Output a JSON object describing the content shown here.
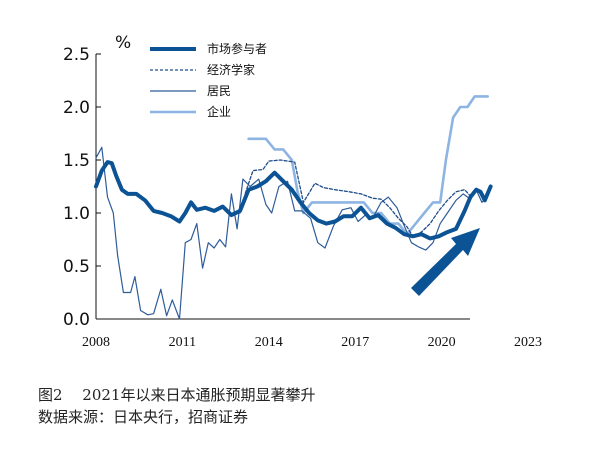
{
  "chart_data": {
    "type": "line",
    "title": "",
    "xlabel": "",
    "ylabel": "%",
    "xlim": [
      2008,
      2023
    ],
    "ylim": [
      0.0,
      2.5
    ],
    "x_ticks": [
      2008,
      2011,
      2014,
      2017,
      2020,
      2023
    ],
    "x_tick_labels": [
      "2008",
      "2011",
      "2014",
      "2017",
      "2020",
      "2023"
    ],
    "y_ticks": [
      0.0,
      0.5,
      1.0,
      1.5,
      2.0,
      2.5
    ],
    "y_tick_labels": [
      "0.0",
      "0.5",
      "1.0",
      "1.5",
      "2.0",
      "2.5"
    ],
    "grid": false,
    "legend_position": "top-center",
    "series": [
      {
        "name": "市场参与者",
        "color": "#0b5394",
        "style": "solid-thick",
        "points": [
          [
            2008.0,
            1.25
          ],
          [
            2008.2,
            1.4
          ],
          [
            2008.4,
            1.48
          ],
          [
            2008.55,
            1.47
          ],
          [
            2008.7,
            1.35
          ],
          [
            2008.9,
            1.22
          ],
          [
            2009.1,
            1.18
          ],
          [
            2009.4,
            1.18
          ],
          [
            2009.7,
            1.12
          ],
          [
            2010.0,
            1.02
          ],
          [
            2010.3,
            1.0
          ],
          [
            2010.6,
            0.97
          ],
          [
            2010.9,
            0.92
          ],
          [
            2011.1,
            1.0
          ],
          [
            2011.3,
            1.1
          ],
          [
            2011.5,
            1.03
          ],
          [
            2011.8,
            1.05
          ],
          [
            2012.1,
            1.02
          ],
          [
            2012.4,
            1.06
          ],
          [
            2012.7,
            0.98
          ],
          [
            2013.0,
            1.02
          ],
          [
            2013.3,
            1.22
          ],
          [
            2013.6,
            1.25
          ],
          [
            2013.9,
            1.3
          ],
          [
            2014.2,
            1.38
          ],
          [
            2014.5,
            1.3
          ],
          [
            2014.8,
            1.22
          ],
          [
            2015.1,
            1.1
          ],
          [
            2015.4,
            1.0
          ],
          [
            2015.7,
            0.93
          ],
          [
            2016.0,
            0.9
          ],
          [
            2016.3,
            0.92
          ],
          [
            2016.6,
            0.97
          ],
          [
            2016.9,
            0.97
          ],
          [
            2017.2,
            1.05
          ],
          [
            2017.5,
            0.95
          ],
          [
            2017.8,
            0.98
          ],
          [
            2018.1,
            0.9
          ],
          [
            2018.4,
            0.86
          ],
          [
            2018.7,
            0.8
          ],
          [
            2019.0,
            0.78
          ],
          [
            2019.3,
            0.8
          ],
          [
            2019.6,
            0.76
          ],
          [
            2019.9,
            0.78
          ],
          [
            2020.2,
            0.82
          ],
          [
            2020.5,
            0.85
          ],
          [
            2020.8,
            1.02
          ],
          [
            2021.0,
            1.15
          ],
          [
            2021.2,
            1.22
          ],
          [
            2021.35,
            1.2
          ],
          [
            2021.5,
            1.12
          ],
          [
            2021.7,
            1.25
          ]
        ]
      },
      {
        "name": "经济学家",
        "color": "#1f4e8c",
        "style": "dashed",
        "points": [
          [
            2013.0,
            1.0
          ],
          [
            2013.2,
            1.2
          ],
          [
            2013.45,
            1.4
          ],
          [
            2013.8,
            1.41
          ],
          [
            2014.0,
            1.49
          ],
          [
            2014.4,
            1.5
          ],
          [
            2014.9,
            1.48
          ],
          [
            2015.2,
            1.1
          ],
          [
            2015.6,
            1.28
          ],
          [
            2015.9,
            1.24
          ],
          [
            2016.3,
            1.22
          ],
          [
            2016.8,
            1.2
          ],
          [
            2017.2,
            1.18
          ],
          [
            2017.6,
            1.14
          ],
          [
            2017.9,
            1.13
          ],
          [
            2018.2,
            1.05
          ],
          [
            2018.5,
            0.95
          ],
          [
            2018.8,
            0.87
          ],
          [
            2019.0,
            0.78
          ],
          [
            2019.3,
            0.82
          ],
          [
            2019.6,
            0.9
          ],
          [
            2019.9,
            1.02
          ],
          [
            2020.2,
            1.12
          ],
          [
            2020.5,
            1.2
          ],
          [
            2020.8,
            1.22
          ],
          [
            2021.0,
            1.16
          ]
        ]
      },
      {
        "name": "居民",
        "color": "#2e5c9a",
        "style": "solid-thin",
        "points": [
          [
            2008.0,
            1.52
          ],
          [
            2008.2,
            1.62
          ],
          [
            2008.4,
            1.15
          ],
          [
            2008.6,
            1.0
          ],
          [
            2008.75,
            0.6
          ],
          [
            2008.95,
            0.25
          ],
          [
            2009.2,
            0.25
          ],
          [
            2009.35,
            0.4
          ],
          [
            2009.55,
            0.08
          ],
          [
            2009.8,
            0.04
          ],
          [
            2010.0,
            0.05
          ],
          [
            2010.25,
            0.28
          ],
          [
            2010.45,
            0.03
          ],
          [
            2010.65,
            0.18
          ],
          [
            2010.9,
            0.0
          ],
          [
            2011.1,
            0.72
          ],
          [
            2011.3,
            0.75
          ],
          [
            2011.5,
            0.9
          ],
          [
            2011.7,
            0.48
          ],
          [
            2011.9,
            0.72
          ],
          [
            2012.1,
            0.67
          ],
          [
            2012.3,
            0.75
          ],
          [
            2012.5,
            0.68
          ],
          [
            2012.7,
            1.18
          ],
          [
            2012.9,
            0.85
          ],
          [
            2013.1,
            1.32
          ],
          [
            2013.35,
            1.25
          ],
          [
            2013.65,
            1.32
          ],
          [
            2013.9,
            1.08
          ],
          [
            2014.1,
            1.0
          ],
          [
            2014.35,
            1.25
          ],
          [
            2014.65,
            1.3
          ],
          [
            2014.9,
            1.02
          ],
          [
            2015.15,
            1.02
          ],
          [
            2015.45,
            0.95
          ],
          [
            2015.7,
            0.72
          ],
          [
            2015.95,
            0.67
          ],
          [
            2016.25,
            0.88
          ],
          [
            2016.55,
            1.03
          ],
          [
            2016.85,
            1.05
          ],
          [
            2017.1,
            0.92
          ],
          [
            2017.35,
            0.98
          ],
          [
            2017.6,
            0.95
          ],
          [
            2017.9,
            1.1
          ],
          [
            2018.15,
            1.15
          ],
          [
            2018.45,
            1.05
          ],
          [
            2018.7,
            0.88
          ],
          [
            2018.95,
            0.72
          ],
          [
            2019.2,
            0.68
          ],
          [
            2019.45,
            0.65
          ],
          [
            2019.7,
            0.72
          ],
          [
            2019.95,
            0.9
          ],
          [
            2020.2,
            1.0
          ],
          [
            2020.5,
            1.12
          ],
          [
            2020.75,
            1.18
          ],
          [
            2021.0,
            1.13
          ],
          [
            2021.2,
            1.22
          ],
          [
            2021.4,
            1.1
          ],
          [
            2021.6,
            1.16
          ]
        ]
      },
      {
        "name": "企业",
        "color": "#8db4e2",
        "style": "solid-medium",
        "points": [
          [
            2013.3,
            1.7
          ],
          [
            2013.6,
            1.7
          ],
          [
            2013.9,
            1.7
          ],
          [
            2014.2,
            1.6
          ],
          [
            2014.5,
            1.6
          ],
          [
            2014.8,
            1.5
          ],
          [
            2015.0,
            1.2
          ],
          [
            2015.2,
            1.0
          ],
          [
            2015.5,
            1.1
          ],
          [
            2015.8,
            1.1
          ],
          [
            2016.1,
            1.1
          ],
          [
            2016.4,
            1.1
          ],
          [
            2016.7,
            1.1
          ],
          [
            2017.0,
            1.1
          ],
          [
            2017.3,
            1.1
          ],
          [
            2017.6,
            1.0
          ],
          [
            2017.9,
            1.0
          ],
          [
            2018.2,
            0.9
          ],
          [
            2018.5,
            0.9
          ],
          [
            2018.8,
            0.8
          ],
          [
            2019.1,
            0.9
          ],
          [
            2019.4,
            1.0
          ],
          [
            2019.7,
            1.1
          ],
          [
            2019.95,
            1.1
          ],
          [
            2020.15,
            1.5
          ],
          [
            2020.4,
            1.9
          ],
          [
            2020.65,
            2.0
          ],
          [
            2020.9,
            2.0
          ],
          [
            2021.15,
            2.1
          ],
          [
            2021.4,
            2.1
          ],
          [
            2021.6,
            2.1
          ]
        ]
      }
    ]
  },
  "caption": {
    "line1": "图2　 2021年以来日本通胀预期显著攀升",
    "line2": "数据来源：日本央行，招商证券"
  }
}
